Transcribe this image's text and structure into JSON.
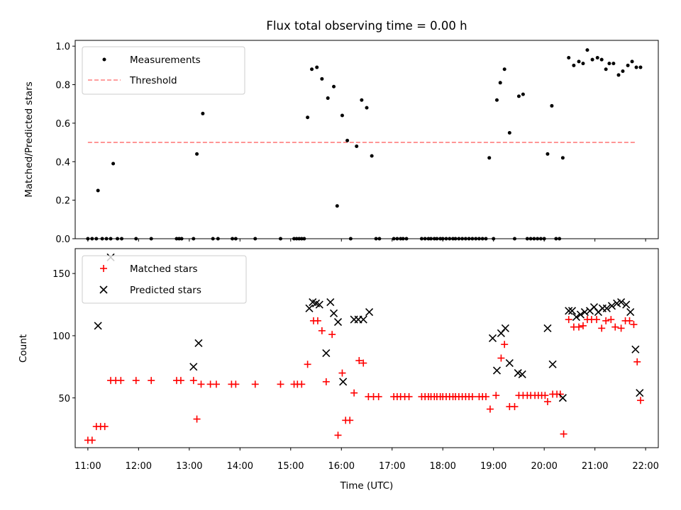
{
  "figure": {
    "title": "Flux total observing time = 0.00 h",
    "xlabel": "Time (UTC)"
  },
  "chart_data": [
    {
      "type": "scatter",
      "ylabel": "Matched/Predicted stars",
      "ylim": [
        0,
        1.03
      ],
      "yticks": [
        "0.0",
        "0.2",
        "0.4",
        "0.6",
        "0.8",
        "1.0"
      ],
      "ytick_values": [
        0,
        0.2,
        0.4,
        0.6,
        0.8,
        1.0
      ],
      "xlim": [
        "10:45",
        "22:15"
      ],
      "legend": {
        "position": "upper left",
        "entries": [
          "Measurements",
          "Threshold"
        ]
      },
      "threshold": {
        "name": "Threshold",
        "value": 0.5,
        "x_start": "11:00",
        "x_end": "21:48",
        "color": "#ff7f7f"
      },
      "series": [
        {
          "name": "Measurements",
          "color": "#000000",
          "points": [
            [
              "11:00",
              0
            ],
            [
              "11:05",
              0
            ],
            [
              "11:10",
              0
            ],
            [
              "11:12",
              0.25
            ],
            [
              "11:17",
              0
            ],
            [
              "11:22",
              0
            ],
            [
              "11:27",
              0
            ],
            [
              "11:30",
              0.39
            ],
            [
              "11:35",
              0
            ],
            [
              "11:40",
              0
            ],
            [
              "11:57",
              0
            ],
            [
              "12:15",
              0
            ],
            [
              "12:45",
              0
            ],
            [
              "12:48",
              0
            ],
            [
              "12:51",
              0
            ],
            [
              "13:05",
              0
            ],
            [
              "13:09",
              0.44
            ],
            [
              "13:16",
              0.65
            ],
            [
              "13:28",
              0
            ],
            [
              "13:34",
              0
            ],
            [
              "13:51",
              0
            ],
            [
              "13:55",
              0
            ],
            [
              "14:18",
              0
            ],
            [
              "14:48",
              0
            ],
            [
              "15:04",
              0
            ],
            [
              "15:07",
              0
            ],
            [
              "15:10",
              0
            ],
            [
              "15:13",
              0
            ],
            [
              "15:16",
              0
            ],
            [
              "15:20",
              0.63
            ],
            [
              "15:25",
              0.88
            ],
            [
              "15:31",
              0.89
            ],
            [
              "15:37",
              0.83
            ],
            [
              "15:44",
              0.73
            ],
            [
              "15:51",
              0.79
            ],
            [
              "15:55",
              0.17
            ],
            [
              "16:01",
              0.64
            ],
            [
              "16:07",
              0.51
            ],
            [
              "16:11",
              0
            ],
            [
              "16:18",
              0.48
            ],
            [
              "16:24",
              0.72
            ],
            [
              "16:30",
              0.68
            ],
            [
              "16:36",
              0.43
            ],
            [
              "16:41",
              0
            ],
            [
              "16:45",
              0
            ],
            [
              "17:02",
              0
            ],
            [
              "17:06",
              0
            ],
            [
              "17:10",
              0
            ],
            [
              "17:13",
              0
            ],
            [
              "17:17",
              0
            ],
            [
              "17:35",
              0
            ],
            [
              "17:39",
              0
            ],
            [
              "17:43",
              0
            ],
            [
              "17:46",
              0
            ],
            [
              "17:50",
              0
            ],
            [
              "17:53",
              0
            ],
            [
              "17:57",
              0
            ],
            [
              "18:00",
              0
            ],
            [
              "18:04",
              0
            ],
            [
              "18:08",
              0
            ],
            [
              "18:12",
              0
            ],
            [
              "18:15",
              0
            ],
            [
              "18:19",
              0
            ],
            [
              "18:23",
              0
            ],
            [
              "18:27",
              0
            ],
            [
              "18:31",
              0
            ],
            [
              "18:35",
              0
            ],
            [
              "18:39",
              0
            ],
            [
              "18:43",
              0
            ],
            [
              "18:47",
              0
            ],
            [
              "18:51",
              0
            ],
            [
              "18:55",
              0.42
            ],
            [
              "19:00",
              0
            ],
            [
              "19:04",
              0.72
            ],
            [
              "19:08",
              0.81
            ],
            [
              "19:13",
              0.88
            ],
            [
              "19:19",
              0.55
            ],
            [
              "19:25",
              0
            ],
            [
              "19:30",
              0.74
            ],
            [
              "19:35",
              0.75
            ],
            [
              "19:40",
              0
            ],
            [
              "19:44",
              0
            ],
            [
              "19:48",
              0
            ],
            [
              "19:52",
              0
            ],
            [
              "19:56",
              0
            ],
            [
              "20:00",
              0
            ],
            [
              "20:04",
              0.44
            ],
            [
              "20:09",
              0.69
            ],
            [
              "20:14",
              0
            ],
            [
              "20:18",
              0
            ],
            [
              "20:22",
              0.42
            ],
            [
              "20:29",
              0.94
            ],
            [
              "20:35",
              0.9
            ],
            [
              "20:41",
              0.92
            ],
            [
              "20:46",
              0.91
            ],
            [
              "20:51",
              0.98
            ],
            [
              "20:57",
              0.93
            ],
            [
              "21:03",
              0.94
            ],
            [
              "21:08",
              0.93
            ],
            [
              "21:13",
              0.88
            ],
            [
              "21:17",
              0.91
            ],
            [
              "21:22",
              0.91
            ],
            [
              "21:28",
              0.85
            ],
            [
              "21:33",
              0.87
            ],
            [
              "21:39",
              0.9
            ],
            [
              "21:44",
              0.92
            ],
            [
              "21:49",
              0.89
            ],
            [
              "21:54",
              0.89
            ]
          ]
        }
      ]
    },
    {
      "type": "scatter",
      "ylabel": "Count",
      "ylim": [
        10,
        170
      ],
      "yticks": [
        "50",
        "100",
        "150"
      ],
      "ytick_values": [
        50,
        100,
        150
      ],
      "xlim": [
        "10:45",
        "22:15"
      ],
      "xticks": [
        "11:00",
        "12:00",
        "13:00",
        "14:00",
        "15:00",
        "16:00",
        "17:00",
        "18:00",
        "19:00",
        "20:00",
        "21:00",
        "22:00"
      ],
      "legend": {
        "position": "upper left",
        "entries": [
          "Matched stars",
          "Predicted stars"
        ]
      },
      "series": [
        {
          "name": "Matched stars",
          "color": "#ff0000",
          "marker": "+",
          "points": [
            [
              "11:00",
              16
            ],
            [
              "11:05",
              16
            ],
            [
              "11:10",
              27
            ],
            [
              "11:15",
              27
            ],
            [
              "11:20",
              27
            ],
            [
              "11:27",
              64
            ],
            [
              "11:33",
              64
            ],
            [
              "11:39",
              64
            ],
            [
              "11:57",
              64
            ],
            [
              "12:15",
              64
            ],
            [
              "12:45",
              64
            ],
            [
              "12:50",
              64
            ],
            [
              "13:05",
              64
            ],
            [
              "13:09",
              33
            ],
            [
              "13:14",
              61
            ],
            [
              "13:25",
              61
            ],
            [
              "13:32",
              61
            ],
            [
              "13:50",
              61
            ],
            [
              "13:55",
              61
            ],
            [
              "14:18",
              61
            ],
            [
              "14:48",
              61
            ],
            [
              "15:04",
              61
            ],
            [
              "15:08",
              61
            ],
            [
              "15:13",
              61
            ],
            [
              "15:20",
              77
            ],
            [
              "15:27",
              112
            ],
            [
              "15:32",
              112
            ],
            [
              "15:37",
              104
            ],
            [
              "15:42",
              63
            ],
            [
              "15:49",
              101
            ],
            [
              "15:56",
              20
            ],
            [
              "16:01",
              70
            ],
            [
              "16:05",
              32
            ],
            [
              "16:10",
              32
            ],
            [
              "16:15",
              54
            ],
            [
              "16:21",
              80
            ],
            [
              "16:26",
              78
            ],
            [
              "16:32",
              51
            ],
            [
              "16:38",
              51
            ],
            [
              "16:44",
              51
            ],
            [
              "17:02",
              51
            ],
            [
              "17:06",
              51
            ],
            [
              "17:10",
              51
            ],
            [
              "17:15",
              51
            ],
            [
              "17:20",
              51
            ],
            [
              "17:35",
              51
            ],
            [
              "17:39",
              51
            ],
            [
              "17:43",
              51
            ],
            [
              "17:46",
              51
            ],
            [
              "17:50",
              51
            ],
            [
              "17:53",
              51
            ],
            [
              "17:57",
              51
            ],
            [
              "18:00",
              51
            ],
            [
              "18:04",
              51
            ],
            [
              "18:08",
              51
            ],
            [
              "18:12",
              51
            ],
            [
              "18:15",
              51
            ],
            [
              "18:19",
              51
            ],
            [
              "18:23",
              51
            ],
            [
              "18:27",
              51
            ],
            [
              "18:31",
              51
            ],
            [
              "18:35",
              51
            ],
            [
              "18:43",
              51
            ],
            [
              "18:47",
              51
            ],
            [
              "18:51",
              51
            ],
            [
              "18:56",
              41
            ],
            [
              "19:03",
              52
            ],
            [
              "19:09",
              82
            ],
            [
              "19:13",
              93
            ],
            [
              "19:19",
              43
            ],
            [
              "19:25",
              43
            ],
            [
              "19:30",
              52
            ],
            [
              "19:35",
              52
            ],
            [
              "19:40",
              52
            ],
            [
              "19:44",
              52
            ],
            [
              "19:49",
              52
            ],
            [
              "19:53",
              52
            ],
            [
              "19:57",
              52
            ],
            [
              "20:01",
              52
            ],
            [
              "20:04",
              47
            ],
            [
              "20:10",
              53
            ],
            [
              "20:15",
              53
            ],
            [
              "20:19",
              53
            ],
            [
              "20:23",
              21
            ],
            [
              "20:29",
              113
            ],
            [
              "20:35",
              107
            ],
            [
              "20:41",
              107
            ],
            [
              "20:46",
              108
            ],
            [
              "20:51",
              113
            ],
            [
              "20:56",
              113
            ],
            [
              "21:02",
              113
            ],
            [
              "21:08",
              106
            ],
            [
              "21:13",
              112
            ],
            [
              "21:19",
              113
            ],
            [
              "21:24",
              107
            ],
            [
              "21:31",
              106
            ],
            [
              "21:36",
              112
            ],
            [
              "21:41",
              112
            ],
            [
              "21:46",
              109
            ],
            [
              "21:50",
              79
            ],
            [
              "21:54",
              48
            ]
          ]
        },
        {
          "name": "Predicted stars",
          "color": "#000000",
          "marker": "x",
          "points": [
            [
              "11:12",
              108
            ],
            [
              "11:27",
              163
            ],
            [
              "13:05",
              75
            ],
            [
              "13:11",
              94
            ],
            [
              "15:22",
              122
            ],
            [
              "15:26",
              127
            ],
            [
              "15:30",
              126
            ],
            [
              "15:34",
              125
            ],
            [
              "15:42",
              86
            ],
            [
              "15:47",
              127
            ],
            [
              "15:51",
              118
            ],
            [
              "15:56",
              111
            ],
            [
              "16:02",
              63
            ],
            [
              "16:15",
              113
            ],
            [
              "16:20",
              113
            ],
            [
              "16:26",
              113
            ],
            [
              "16:33",
              119
            ],
            [
              "18:59",
              98
            ],
            [
              "19:04",
              72
            ],
            [
              "19:09",
              102
            ],
            [
              "19:14",
              106
            ],
            [
              "19:19",
              78
            ],
            [
              "19:29",
              70
            ],
            [
              "19:34",
              69
            ],
            [
              "20:04",
              106
            ],
            [
              "20:10",
              77
            ],
            [
              "20:22",
              50
            ],
            [
              "20:29",
              120
            ],
            [
              "20:33",
              120
            ],
            [
              "20:38",
              115
            ],
            [
              "20:43",
              117
            ],
            [
              "20:48",
              119
            ],
            [
              "20:54",
              120
            ],
            [
              "20:59",
              123
            ],
            [
              "21:04",
              119
            ],
            [
              "21:09",
              122
            ],
            [
              "21:14",
              122
            ],
            [
              "21:20",
              124
            ],
            [
              "21:26",
              126
            ],
            [
              "21:31",
              127
            ],
            [
              "21:37",
              125
            ],
            [
              "21:42",
              119
            ],
            [
              "21:48",
              89
            ],
            [
              "21:53",
              54
            ]
          ]
        }
      ]
    }
  ]
}
